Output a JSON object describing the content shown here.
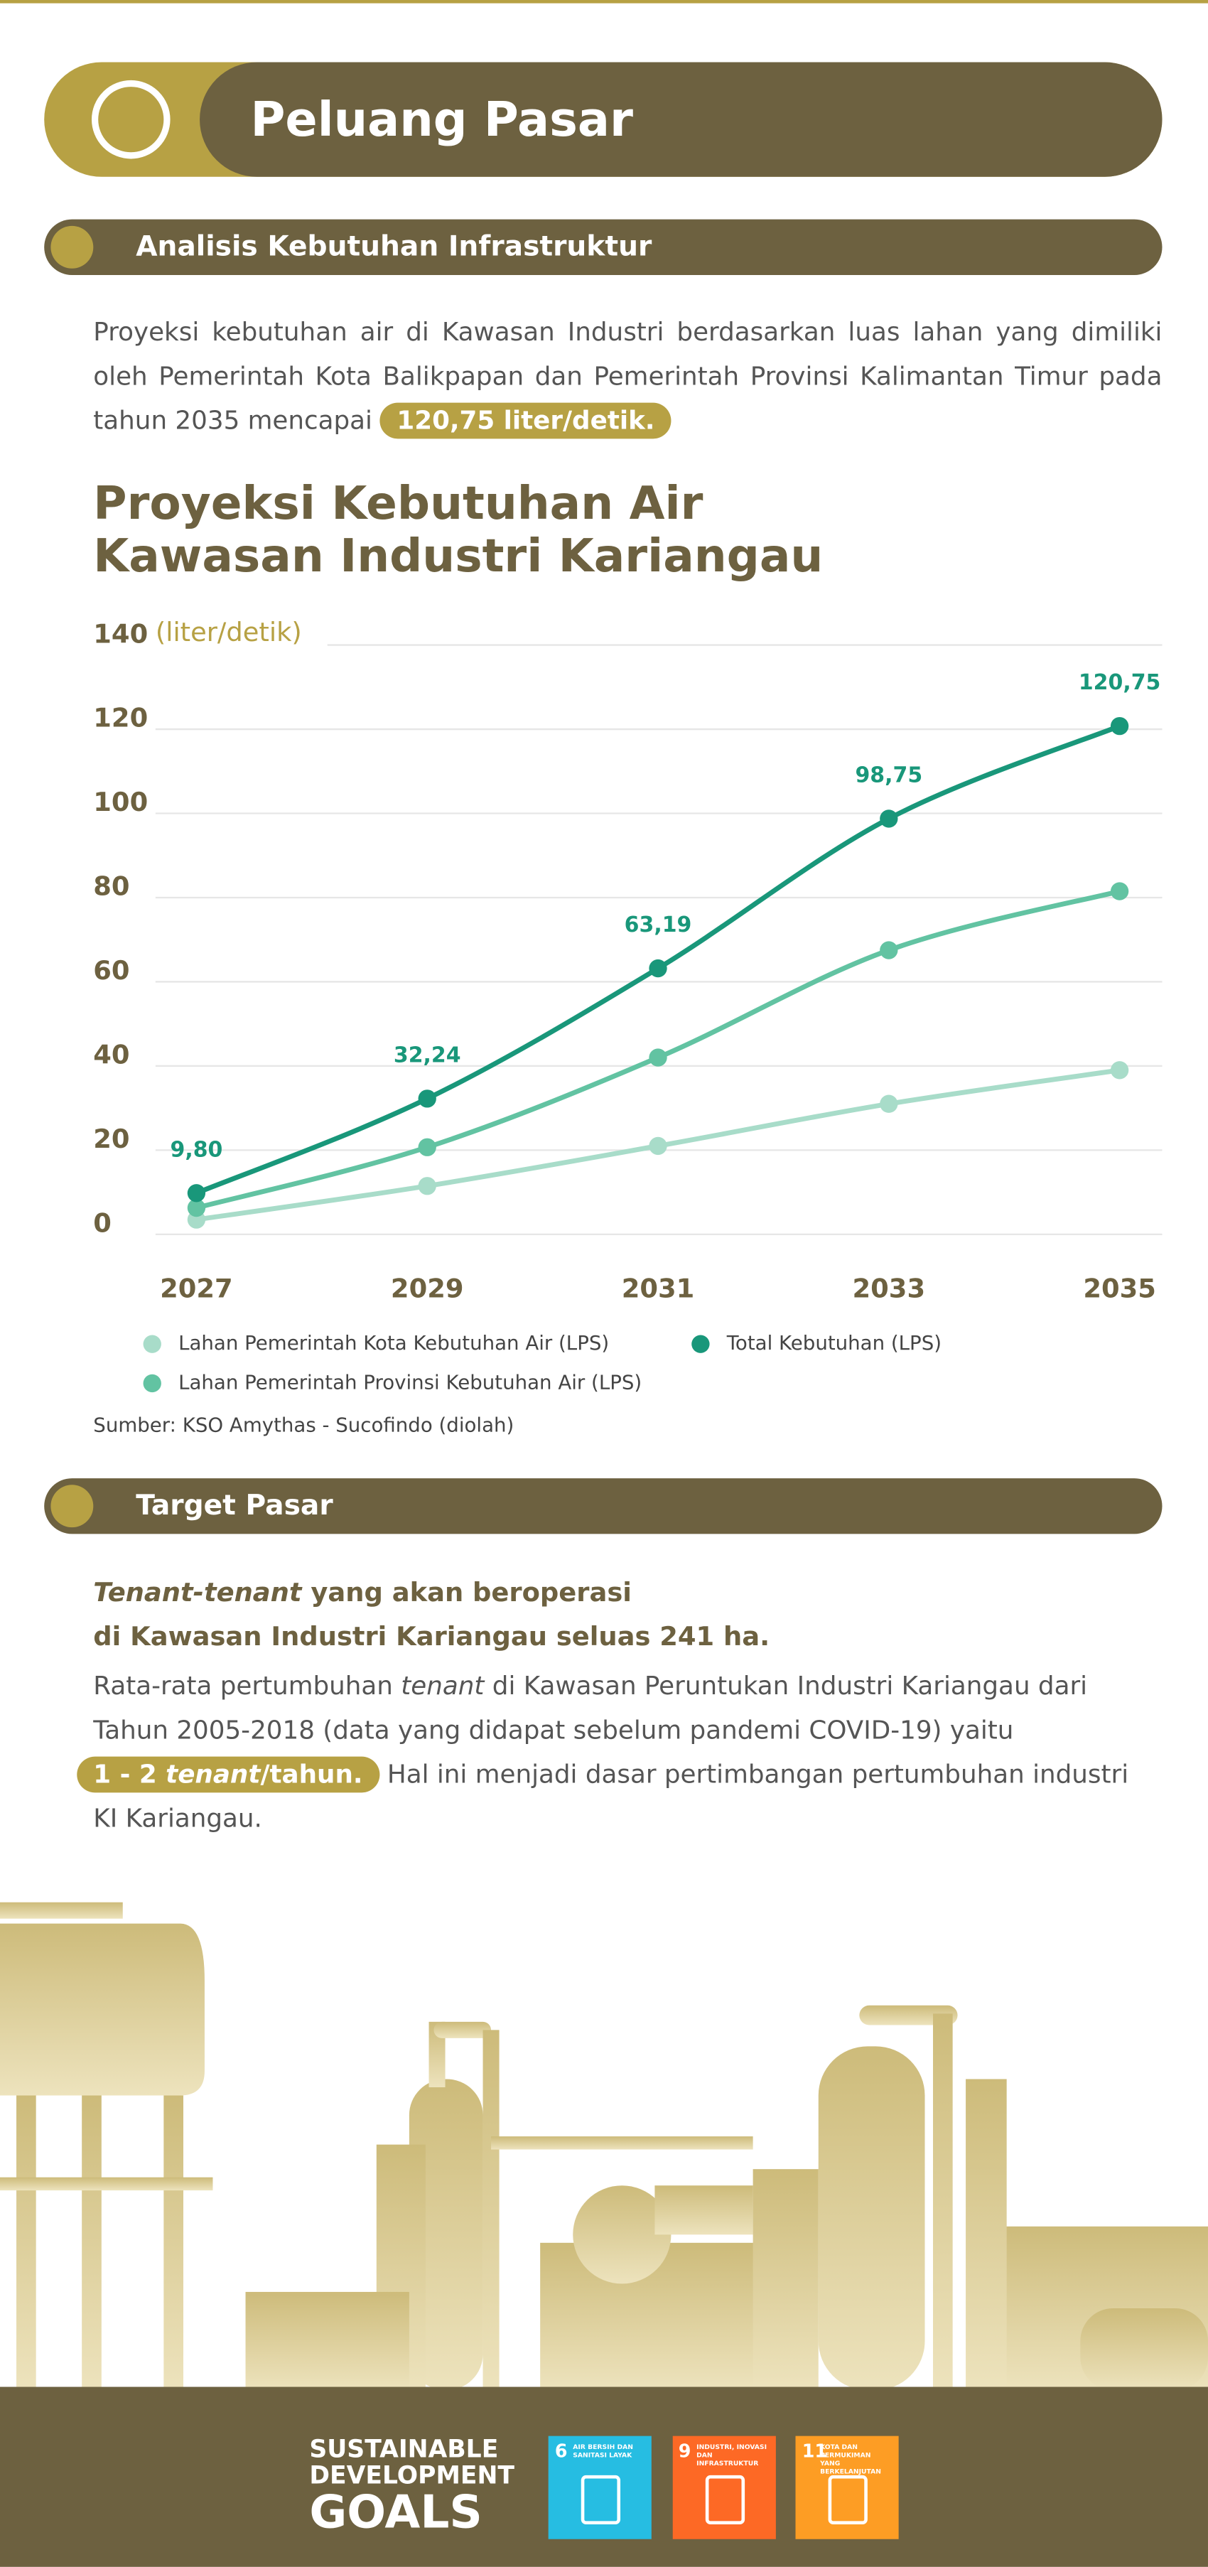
{
  "header": {
    "title": "Peluang Pasar"
  },
  "analysis": {
    "heading": "Analisis Kebutuhan Infrastruktur",
    "paragraph": "Proyeksi kebutuhan air di Kawasan Industri berdasarkan luas lahan yang dimiliki oleh Pemerintah Kota Balikpapan dan Pemerintah Provinsi Kalimantan Timur pada tahun 2035 mencapai",
    "highlight": "120,75 liter/detik."
  },
  "chart_data": {
    "type": "line",
    "title": [
      "Proyeksi Kebutuhan Air",
      "Kawasan Industri Kariangau"
    ],
    "y_label": "(liter/detik)",
    "categories": [
      "2027",
      "2029",
      "2031",
      "2033",
      "2035"
    ],
    "series": [
      {
        "name": "Lahan Pemerintah Kota Kebutuhan Air (LPS)",
        "color": "#a8dcc9",
        "values": [
          3.5,
          11.5,
          21,
          31,
          39
        ]
      },
      {
        "name": "Lahan Pemerintah Provinsi Kebutuhan Air (LPS)",
        "color": "#62c3a2",
        "values": [
          6.3,
          20.7,
          42,
          67.5,
          81.5
        ]
      },
      {
        "name": "Total Kebutuhan (LPS)",
        "color": "#19977a",
        "values": [
          9.8,
          32.24,
          63.19,
          98.75,
          120.75
        ],
        "value_labels": [
          "9,80",
          "32,24",
          "63,19",
          "98,75",
          "120,75"
        ]
      }
    ],
    "ylim": [
      0,
      140
    ],
    "yticks": [
      0,
      20,
      40,
      60,
      80,
      100,
      120,
      140
    ],
    "grid": true,
    "source": "Sumber: KSO Amythas - Sucofindo (diolah)"
  },
  "target": {
    "heading": "Target Pasar",
    "lead_italic": "Tenant-tenant",
    "lead": [
      "yang akan beroperasi",
      "di Kawasan Industri Kariangau seluas 241 ha."
    ],
    "body_1": "Rata-rata pertumbuhan",
    "body_italic": "tenant",
    "body_2": "di Kawasan Peruntukan Industri Kariangau dari Tahun 2005-2018 (data yang didapat sebelum pandemi COVID-19) yaitu",
    "pill_prefix": "1 - 2",
    "pill_italic": "tenant",
    "pill_suffix": "/tahun.",
    "body_3": "Hal ini menjadi dasar pertimbangan pertumbuhan industri KI Kariangau."
  },
  "footer": {
    "sdg_title": [
      "SUSTAINABLE",
      "DEVELOPMENT",
      "GOALS"
    ],
    "goals": [
      {
        "number": "6",
        "label": "AIR BERSIH DAN SANITASI LAYAK",
        "color": "#26bde2"
      },
      {
        "number": "9",
        "label": "INDUSTRI, INOVASI DAN INFRASTRUKTUR",
        "color": "#fd6925"
      },
      {
        "number": "11",
        "label": "KOTA DAN PERMUKIMAN YANG BERKELANJUTAN",
        "color": "#fd9d24"
      }
    ]
  }
}
